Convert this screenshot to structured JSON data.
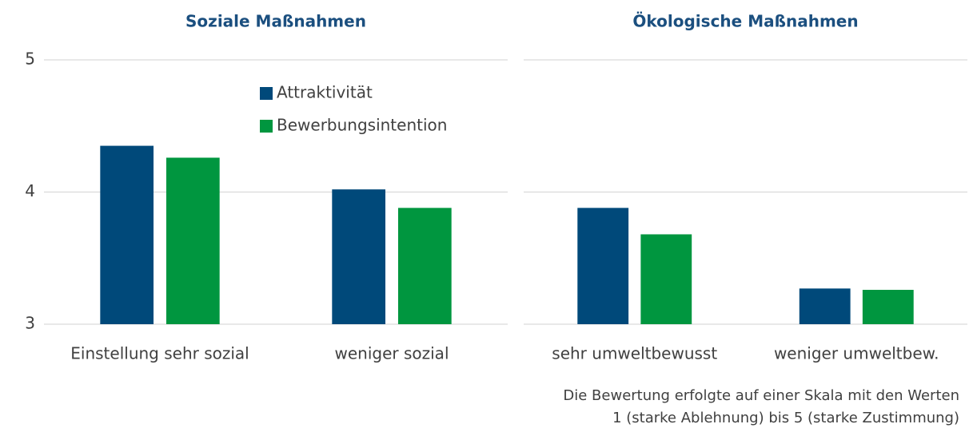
{
  "chart_data": [
    {
      "type": "bar",
      "title": "Soziale Maßnahmen",
      "categories": [
        "Einstellung sehr sozial",
        "weniger sozial"
      ],
      "series": [
        {
          "name": "Attraktivität",
          "color": "#00497a",
          "values": [
            4.35,
            4.02
          ]
        },
        {
          "name": "Bewerbungsintention",
          "color": "#00963f",
          "values": [
            4.26,
            3.88
          ]
        }
      ],
      "ylim": [
        3,
        5
      ],
      "yticks": [
        3,
        4,
        5
      ],
      "grid": true,
      "legend": "top"
    },
    {
      "type": "bar",
      "title": "Ökologische Maßnahmen",
      "categories": [
        "sehr umweltbewusst",
        "weniger umweltbew."
      ],
      "series": [
        {
          "name": "Attraktivität",
          "color": "#00497a",
          "values": [
            3.88,
            3.27
          ]
        },
        {
          "name": "Bewerbungsintention",
          "color": "#00963f",
          "values": [
            3.68,
            3.26
          ]
        }
      ],
      "ylim": [
        3,
        5
      ],
      "yticks": [
        3,
        4,
        5
      ],
      "grid": true
    }
  ],
  "note": [
    "Die Bewertung erfolgte auf einer Skala mit den Werten",
    "1 (starke Ablehnung) bis 5 (starke Zustimmung)"
  ]
}
